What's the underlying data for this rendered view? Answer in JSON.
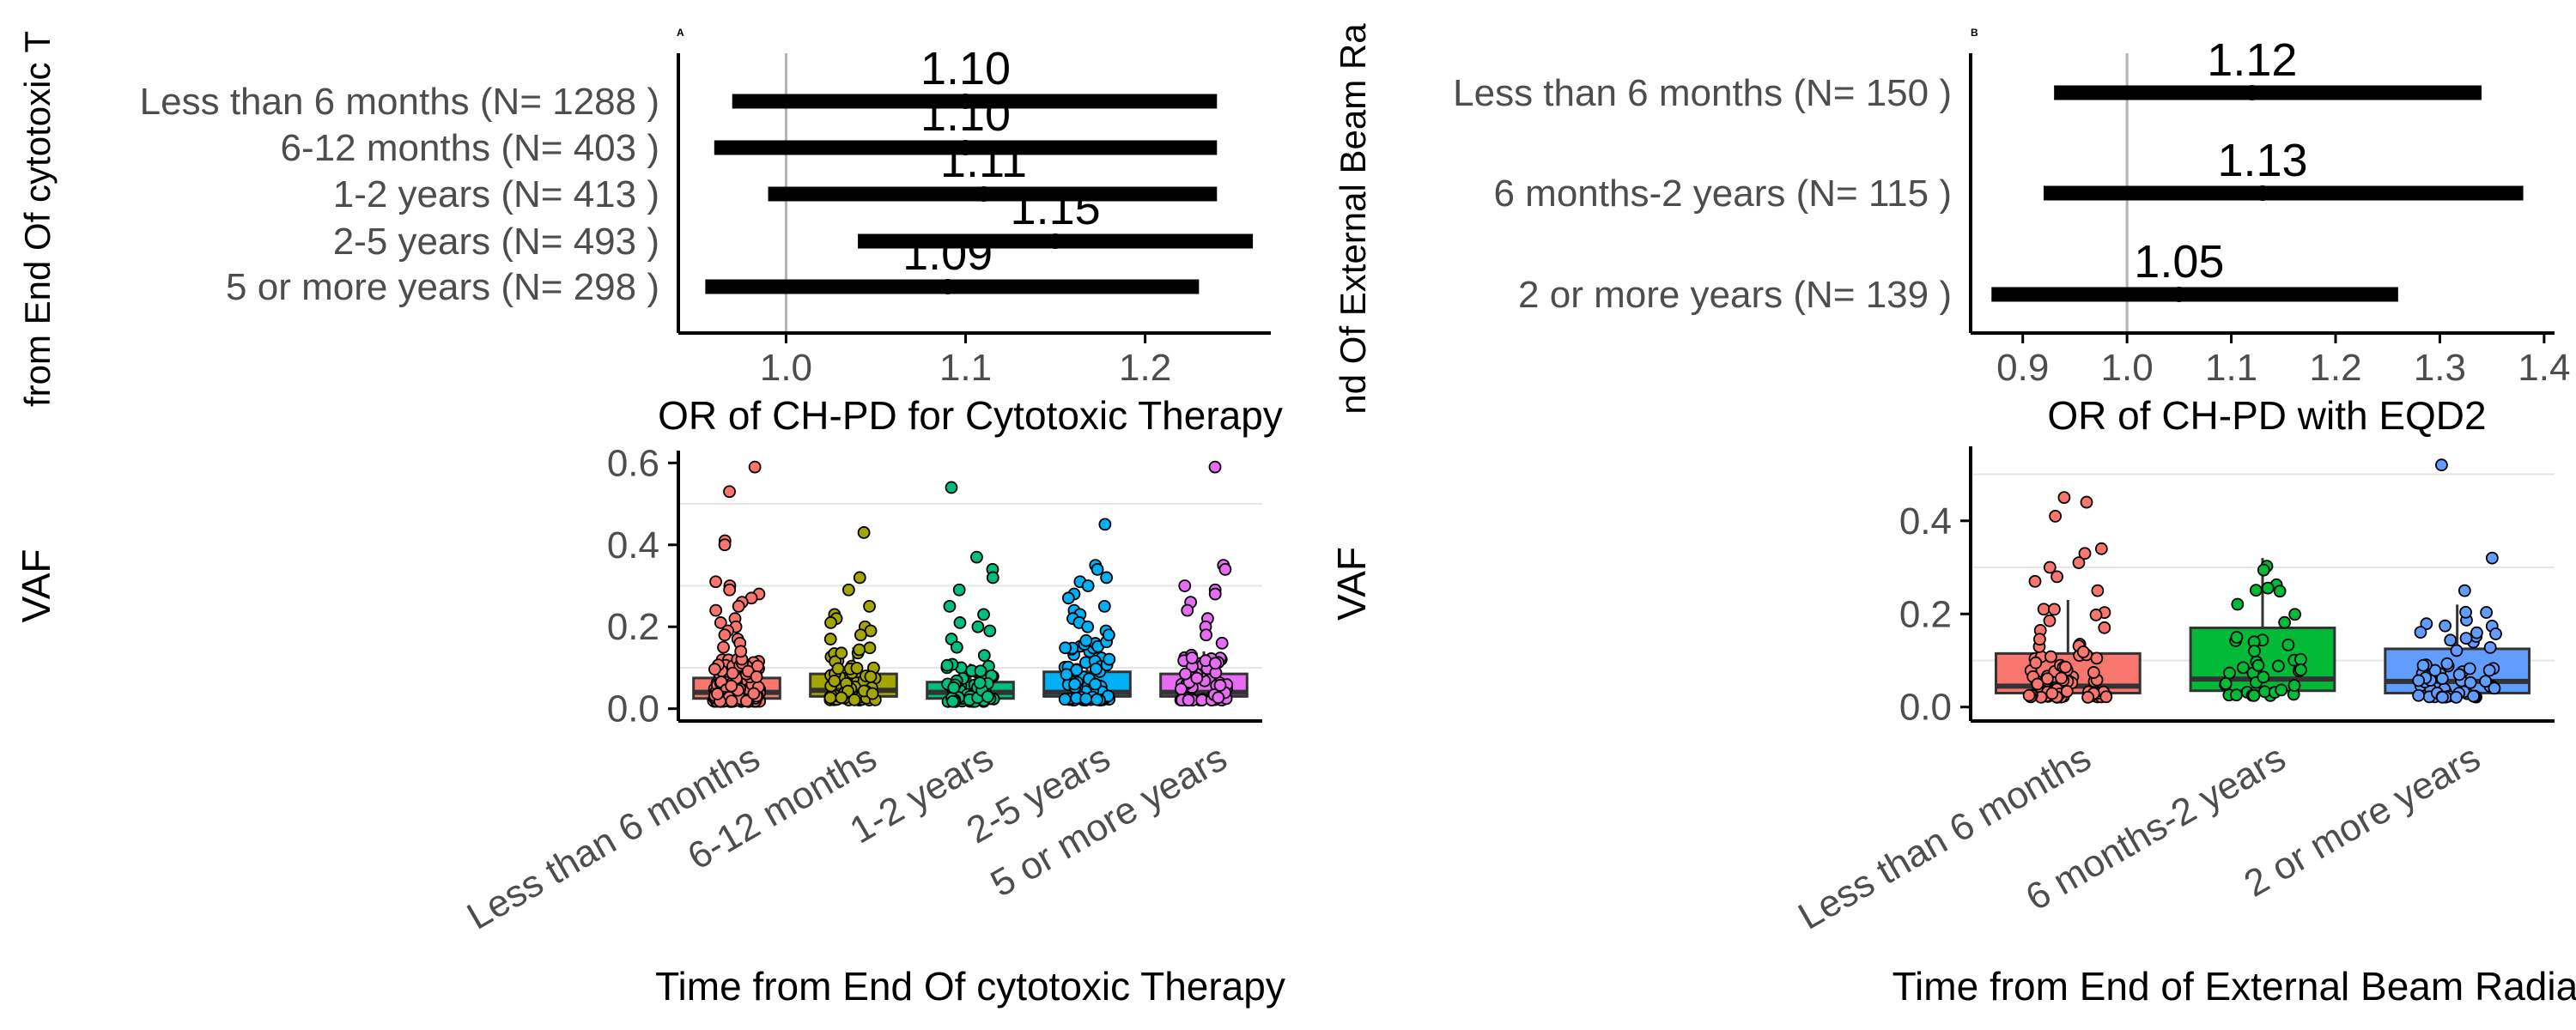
{
  "panels": {
    "a": {
      "tag": "A",
      "yaxis_label": "from End Of cytotoxic T"
    },
    "b": {
      "tag": "B",
      "yaxis_label": "nd Of External Beam Ra"
    }
  },
  "colors": {
    "forest_bar": "#000000",
    "ref_line": "#b3b3b3",
    "axis": "#000000",
    "grid": "#e6e6e6",
    "tick_text": "#4d4d4d",
    "label_text": "#000000",
    "box_lt6m": "#f8766d",
    "box_6_12m": "#a3a500",
    "box_1_2y": "#00bf7d",
    "box_2_5y": "#00b0f6",
    "box_5plus": "#e76bf3",
    "box_b_lt6m": "#f8766d",
    "box_b_6m2y": "#00ba38",
    "box_b_2plus": "#619cff"
  },
  "chart_data": [
    {
      "id": "forest_a",
      "type": "forest",
      "xlabel": "OR of CH-PD for Cytotoxic Therapy",
      "xlim": [
        0.94,
        1.27
      ],
      "xticks": [
        1.0,
        1.1,
        1.2
      ],
      "tick_labels": [
        "1.0",
        "1.1",
        "1.2"
      ],
      "reference_line": 1.0,
      "rows": [
        {
          "label": "Less than 6 months (N= 1288 )",
          "or": 1.1,
          "or_label": "1.10",
          "lo": 0.97,
          "hi": 1.24
        },
        {
          "label": "6-12 months (N= 403 )",
          "or": 1.1,
          "or_label": "1.10",
          "lo": 0.96,
          "hi": 1.24
        },
        {
          "label": "1-2 years (N= 413 )",
          "or": 1.11,
          "or_label": "1.11",
          "lo": 0.99,
          "hi": 1.24
        },
        {
          "label": "2-5 years (N= 493 )",
          "or": 1.15,
          "or_label": "1.15",
          "lo": 1.04,
          "hi": 1.26
        },
        {
          "label": "5 or more years (N= 298 )",
          "or": 1.09,
          "or_label": "1.09",
          "lo": 0.955,
          "hi": 1.23
        }
      ]
    },
    {
      "id": "forest_b",
      "type": "forest",
      "xlabel": "OR of CH-PD with EQD2",
      "xlim": [
        0.85,
        1.41
      ],
      "xticks": [
        0.9,
        1.0,
        1.1,
        1.2,
        1.3,
        1.4
      ],
      "tick_labels": [
        "0.9",
        "1.0",
        "1.1",
        "1.2",
        "1.3",
        "1.4"
      ],
      "reference_line": 1.0,
      "rows": [
        {
          "label": "Less than 6 months (N= 150 )",
          "or": 1.12,
          "or_label": "1.12",
          "lo": 0.93,
          "hi": 1.34
        },
        {
          "label": "6 months-2 years (N= 115 )",
          "or": 1.13,
          "or_label": "1.13",
          "lo": 0.92,
          "hi": 1.38
        },
        {
          "label": "2 or more years (N= 139 )",
          "or": 1.05,
          "or_label": "1.05",
          "lo": 0.87,
          "hi": 1.26
        }
      ]
    },
    {
      "id": "box_a",
      "type": "boxplot",
      "ylabel": "VAF",
      "xlabel": "Time from End Of cytotoxic Therapy",
      "ylim": [
        -0.03,
        0.63
      ],
      "yticks": [
        0.0,
        0.2,
        0.4,
        0.6
      ],
      "ytick_labels": [
        "0.0",
        "0.2",
        "0.4",
        "0.6"
      ],
      "minor_grid": [
        0.1,
        0.3,
        0.5
      ],
      "groups": [
        {
          "label": "Less than 6 months",
          "color_key": "box_lt6m",
          "n_points": 150,
          "q1": 0.025,
          "median": 0.04,
          "q3": 0.075,
          "whisker_hi": 0.13,
          "outliers": [
            0.59,
            0.53,
            0.41,
            0.4,
            0.31,
            0.3,
            0.29,
            0.28,
            0.27,
            0.26,
            0.25,
            0.24,
            0.22,
            0.21,
            0.2,
            0.19,
            0.18,
            0.17,
            0.16,
            0.15,
            0.14
          ]
        },
        {
          "label": "6-12 months",
          "color_key": "box_6_12m",
          "n_points": 65,
          "q1": 0.03,
          "median": 0.045,
          "q3": 0.085,
          "whisker_hi": 0.15,
          "outliers": [
            0.43,
            0.32,
            0.29,
            0.25,
            0.23,
            0.22,
            0.21,
            0.2,
            0.19,
            0.18,
            0.17
          ]
        },
        {
          "label": "1-2 years",
          "color_key": "box_1_2y",
          "n_points": 60,
          "q1": 0.025,
          "median": 0.04,
          "q3": 0.065,
          "whisker_hi": 0.11,
          "outliers": [
            0.54,
            0.37,
            0.34,
            0.32,
            0.29,
            0.25,
            0.23,
            0.21,
            0.2,
            0.19,
            0.17,
            0.15,
            0.13
          ]
        },
        {
          "label": "2-5 years",
          "color_key": "box_2_5y",
          "n_points": 80,
          "q1": 0.03,
          "median": 0.04,
          "q3": 0.09,
          "whisker_hi": 0.17,
          "outliers": [
            0.45,
            0.35,
            0.34,
            0.32,
            0.31,
            0.3,
            0.28,
            0.27,
            0.25,
            0.24,
            0.23,
            0.22,
            0.21,
            0.2,
            0.19,
            0.18
          ]
        },
        {
          "label": "5 or more years",
          "color_key": "box_5plus",
          "n_points": 55,
          "q1": 0.03,
          "median": 0.04,
          "q3": 0.085,
          "whisker_hi": 0.14,
          "outliers": [
            0.59,
            0.35,
            0.34,
            0.3,
            0.29,
            0.28,
            0.26,
            0.24,
            0.22,
            0.2,
            0.18,
            0.16
          ]
        }
      ]
    },
    {
      "id": "box_b",
      "type": "boxplot",
      "ylabel": "VAF",
      "xlabel": "Time from End of External Beam Radiation",
      "ylim": [
        -0.03,
        0.56
      ],
      "yticks": [
        0.0,
        0.2,
        0.4
      ],
      "ytick_labels": [
        "0.0",
        "0.2",
        "0.4"
      ],
      "minor_grid": [
        0.1,
        0.3,
        0.5
      ],
      "groups": [
        {
          "label": "Less than 6 months",
          "color_key": "box_b_lt6m",
          "n_points": 70,
          "q1": 0.03,
          "median": 0.045,
          "q3": 0.115,
          "whisker_hi": 0.23,
          "outliers": [
            0.45,
            0.44,
            0.41,
            0.34,
            0.33,
            0.31,
            0.3,
            0.28,
            0.27,
            0.25
          ]
        },
        {
          "label": "6 months-2 years",
          "color_key": "box_b_6m2y",
          "n_points": 40,
          "q1": 0.035,
          "median": 0.06,
          "q3": 0.17,
          "whisker_hi": 0.32,
          "outliers": []
        },
        {
          "label": "2 or more years",
          "color_key": "box_b_2plus",
          "n_points": 60,
          "q1": 0.03,
          "median": 0.055,
          "q3": 0.125,
          "whisker_hi": 0.22,
          "outliers": [
            0.52,
            0.32,
            0.25
          ]
        }
      ]
    }
  ]
}
